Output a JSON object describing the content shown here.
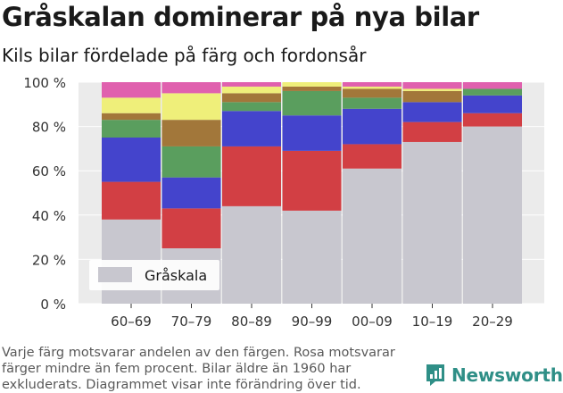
{
  "header": {
    "title": "Gråskalan dominerar på nya bilar",
    "subtitle": "Kils bilar fördelade på färg och fordonsår"
  },
  "chart_data": {
    "type": "bar",
    "stacked": true,
    "title": "Gråskalan dominerar på nya bilar",
    "subtitle": "Kils bilar fördelade på färg och fordonsår",
    "xlabel": "",
    "ylabel": "",
    "categories": [
      "60–69",
      "70–79",
      "80–89",
      "90–99",
      "00–09",
      "10–19",
      "20–29"
    ],
    "ylim": [
      0,
      100
    ],
    "yticks": [
      0,
      20,
      40,
      60,
      80,
      100
    ],
    "ytick_labels": [
      "0 %",
      "20 %",
      "40 %",
      "60 %",
      "80 %",
      "100 %"
    ],
    "grid": true,
    "legend": {
      "position": "bottom-left",
      "entries": [
        "Gråskala"
      ]
    },
    "series": [
      {
        "name": "Gråskala",
        "color": "#c8c7cf",
        "values": [
          38,
          25,
          44,
          42,
          61,
          73,
          80
        ]
      },
      {
        "color": "#d23f44",
        "values": [
          17,
          18,
          27,
          27,
          11,
          9,
          6
        ]
      },
      {
        "color": "#4444cc",
        "values": [
          20,
          14,
          16,
          16,
          16,
          9,
          8
        ]
      },
      {
        "color": "#5a9e5e",
        "values": [
          8,
          14,
          4,
          11,
          5,
          0,
          3
        ]
      },
      {
        "color": "#a2773a",
        "values": [
          3,
          12,
          4,
          2,
          4,
          5,
          0
        ]
      },
      {
        "color": "#efef7a",
        "values": [
          7,
          12,
          3,
          2,
          1,
          1,
          0
        ]
      },
      {
        "color": "#e060ae",
        "values": [
          7,
          5,
          2,
          0,
          2,
          3,
          3
        ]
      }
    ]
  },
  "footnote": "Varje färg motsvarar andelen av den färgen. Rosa motsvarar färger mindre än fem procent. Bilar äldre än 1960 har exkluderats. Diagrammet visar inte förändring över tid.",
  "brand": {
    "name": "Newsworthy",
    "color": "#2f8f87",
    "icon": "newsworthy-logo-icon"
  }
}
